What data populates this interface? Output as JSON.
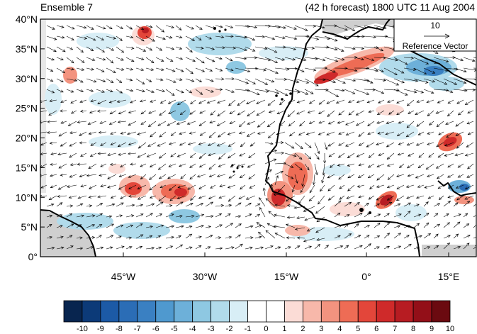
{
  "header": {
    "title_left": "Ensemble 7",
    "title_right": "(42 h forecast) 1800 UTC 11 Aug 2004"
  },
  "map": {
    "y_ticks": [
      "0°",
      "5°N",
      "10°N",
      "15°N",
      "20°N",
      "25°N",
      "30°N",
      "35°N",
      "40°N"
    ],
    "x_ticks": [
      "45°W",
      "30°W",
      "15°W",
      "0°",
      "15°E"
    ],
    "reference_vector": {
      "magnitude": "10",
      "label": "Reference Vector"
    }
  },
  "colorbar": {
    "labels": [
      "-10",
      "-9",
      "-8",
      "-7",
      "-6",
      "-5",
      "-4",
      "-3",
      "-2",
      "-1",
      "0",
      "1",
      "2",
      "3",
      "4",
      "5",
      "6",
      "7",
      "8",
      "9",
      "10"
    ],
    "colors": [
      "#08254f",
      "#0c3a78",
      "#1c5aa6",
      "#2b6db6",
      "#3a80c2",
      "#4f99cf",
      "#6db0d9",
      "#8ec8e2",
      "#b1dbeb",
      "#d8eef6",
      "#ffffff",
      "#ffffff",
      "#fbdcd6",
      "#f7b8aa",
      "#f3937f",
      "#ee6c55",
      "#e3463a",
      "#cf2a2a",
      "#b71c22",
      "#930f18",
      "#6b0a10"
    ]
  }
}
